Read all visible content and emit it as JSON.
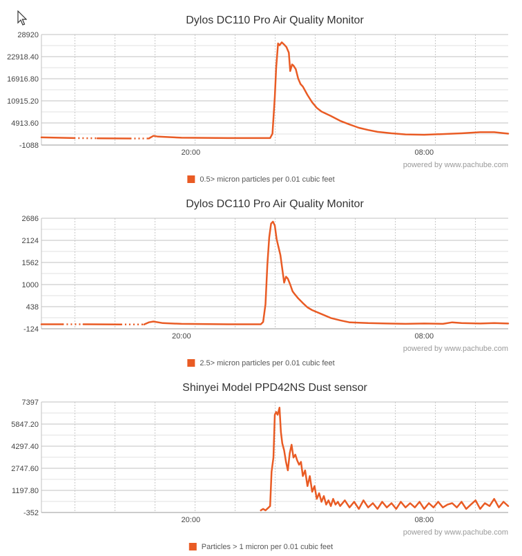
{
  "series_color": "#e95b24",
  "credit": "powered by www.pachube.com",
  "chart_data": [
    {
      "type": "line",
      "title": "Dylos DC110 Pro Air Quality Monitor",
      "legend": "0.5> micron particles per 0.01 cubic feet",
      "yticks": [
        "28920",
        "22918.40",
        "16916.80",
        "10915.20",
        "4913.60",
        "-1088"
      ],
      "ylim": [
        -1088,
        28920
      ],
      "xlim": [
        0,
        100
      ],
      "xticks": [
        {
          "label": "20:00",
          "pos": 32
        },
        {
          "label": "08:00",
          "pos": 82
        }
      ],
      "x": [
        0,
        7,
        8,
        11,
        12,
        19,
        20,
        22,
        23,
        24,
        25,
        30,
        40,
        49,
        49.5,
        50,
        50.3,
        50.7,
        51,
        51.5,
        52,
        52.5,
        53,
        53.3,
        53.7,
        54,
        54.5,
        55,
        55.5,
        56,
        57,
        58,
        59,
        60,
        62,
        64,
        66,
        68,
        70,
        72,
        75,
        78,
        82,
        86,
        90,
        94,
        97,
        100
      ],
      "values": [
        1000,
        800,
        null,
        null,
        750,
        700,
        null,
        null,
        700,
        1400,
        1200,
        900,
        800,
        800,
        2000,
        12000,
        20000,
        26500,
        26000,
        26800,
        26200,
        25500,
        24000,
        19000,
        20800,
        20500,
        19500,
        17000,
        15500,
        14800,
        12500,
        10500,
        9000,
        8000,
        6800,
        5500,
        4500,
        3600,
        3000,
        2500,
        2100,
        1800,
        1700,
        1900,
        2100,
        2400,
        2400,
        2000
      ]
    },
    {
      "type": "line",
      "title": "Dylos DC110 Pro Air Quality Monitor",
      "legend": "2.5> micron particles per 0.01 cubic feet",
      "yticks": [
        "2686",
        "2124",
        "1562",
        "1000",
        "438",
        "-124"
      ],
      "ylim": [
        -124,
        2686
      ],
      "xlim": [
        0,
        100
      ],
      "xticks": [
        {
          "label": "20:00",
          "pos": 30
        },
        {
          "label": "08:00",
          "pos": 82
        }
      ],
      "x": [
        0,
        4.5,
        5.5,
        8,
        9,
        17,
        18,
        21,
        22,
        23,
        24,
        26,
        30,
        40,
        47,
        47.5,
        48,
        48.4,
        48.8,
        49.2,
        49.6,
        50,
        50.4,
        50.8,
        51.2,
        51.6,
        52,
        52.4,
        52.8,
        53.3,
        53.8,
        54.3,
        55,
        56,
        57,
        58,
        60,
        62,
        64,
        66,
        68,
        70,
        74,
        78,
        82,
        86,
        88,
        90,
        94,
        97,
        100
      ],
      "values": [
        -10,
        -10,
        null,
        null,
        -10,
        -15,
        null,
        null,
        -15,
        40,
        60,
        20,
        0,
        -10,
        -10,
        50,
        500,
        1500,
        2200,
        2550,
        2600,
        2500,
        2150,
        1950,
        1750,
        1400,
        1050,
        1200,
        1150,
        1000,
        830,
        750,
        650,
        530,
        420,
        350,
        250,
        150,
        90,
        40,
        30,
        20,
        10,
        0,
        10,
        0,
        40,
        20,
        10,
        20,
        10
      ]
    },
    {
      "type": "line",
      "title": "Shinyei Model PPD42NS Dust sensor",
      "legend": "Particles > 1 micron per 0.01 cubic feet",
      "yticks": [
        "7397",
        "5847.20",
        "4297.40",
        "2747.60",
        "1197.80",
        "-352"
      ],
      "ylim": [
        -352,
        7397
      ],
      "xlim": [
        0,
        100
      ],
      "xticks": [
        {
          "label": "20:00",
          "pos": 32
        },
        {
          "label": "08:00",
          "pos": 82
        }
      ],
      "x": [
        47,
        47.5,
        48,
        48.5,
        49,
        49.3,
        49.7,
        50,
        50.3,
        50.6,
        51,
        51.3,
        51.6,
        52,
        52.4,
        52.8,
        53.2,
        53.6,
        54,
        54.4,
        54.8,
        55.2,
        55.6,
        56,
        56.5,
        57,
        57.5,
        58,
        58.5,
        59,
        59.5,
        60,
        60.5,
        61,
        61.5,
        62,
        62.5,
        63,
        63.5,
        64,
        65,
        66,
        67,
        68,
        69,
        70,
        71,
        72,
        73,
        74,
        75,
        76,
        77,
        78,
        79,
        80,
        81,
        82,
        83,
        84,
        85,
        86,
        87,
        88,
        89,
        90,
        91,
        92,
        93,
        94,
        95,
        96,
        97,
        98,
        99,
        100
      ],
      "values": [
        -200,
        -100,
        -200,
        -50,
        100,
        2500,
        3500,
        6500,
        6700,
        6500,
        7000,
        5300,
        4500,
        4000,
        3200,
        2600,
        3800,
        4400,
        3500,
        3700,
        3300,
        3000,
        3200,
        2200,
        2600,
        1500,
        2200,
        1100,
        1500,
        600,
        1000,
        400,
        800,
        200,
        500,
        100,
        600,
        200,
        400,
        100,
        500,
        0,
        400,
        -100,
        500,
        0,
        300,
        -100,
        400,
        0,
        300,
        -100,
        400,
        0,
        300,
        0,
        400,
        -100,
        300,
        0,
        400,
        0,
        200,
        300,
        0,
        400,
        -100,
        200,
        500,
        -100,
        300,
        100,
        600,
        0,
        400,
        100
      ]
    }
  ]
}
